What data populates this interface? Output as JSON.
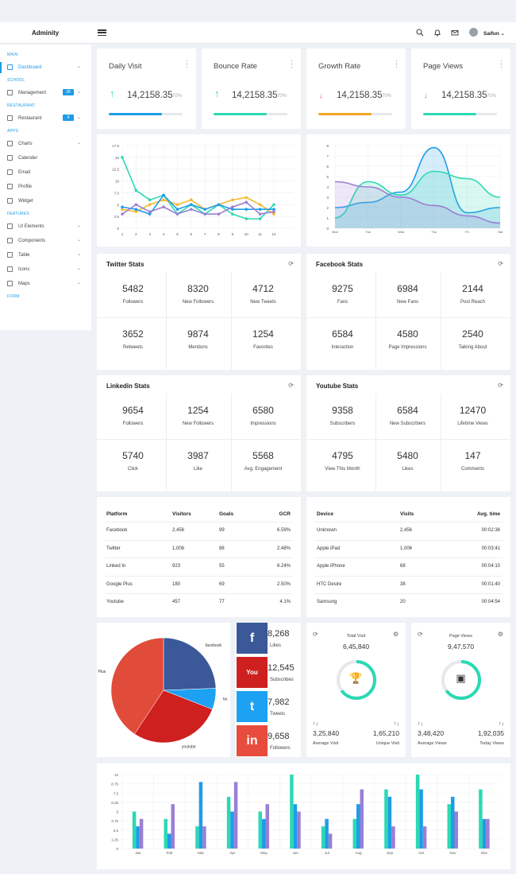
{
  "app": {
    "brand": "Adminity",
    "user": "Saifun"
  },
  "topbar": {
    "icons": [
      "search-icon",
      "bell-icon",
      "mail-icon",
      "avatar"
    ]
  },
  "sidebar": {
    "sections": [
      {
        "title": "MAIN",
        "items": [
          {
            "label": "Dashboard",
            "icon": "home-icon",
            "active": true,
            "chevron": true
          }
        ]
      },
      {
        "title": "SCHOOL",
        "items": [
          {
            "label": "Management",
            "icon": "edit-icon",
            "badge": "28",
            "chevron": true
          }
        ]
      },
      {
        "title": "RESTAURANT",
        "items": [
          {
            "label": "Restaurant",
            "icon": "cup-icon",
            "badge": "9",
            "chevron": true
          }
        ]
      },
      {
        "title": "APPS",
        "items": [
          {
            "label": "Charts",
            "icon": "bar-chart-icon",
            "chevron": true
          },
          {
            "label": "Calender",
            "icon": "calendar-icon"
          },
          {
            "label": "Email",
            "icon": "mail-icon"
          },
          {
            "label": "Profile",
            "icon": "user-icon"
          },
          {
            "label": "Widget",
            "icon": "grid-icon"
          }
        ]
      },
      {
        "title": "FEATURES",
        "items": [
          {
            "label": "UI Elements",
            "icon": "layers-icon",
            "chevron": true
          },
          {
            "label": "Components",
            "icon": "box-icon",
            "chevron": true
          },
          {
            "label": "Table",
            "icon": "table-icon",
            "chevron": true
          },
          {
            "label": "Icons",
            "icon": "heart-icon",
            "chevron": true
          },
          {
            "label": "Maps",
            "icon": "map-icon",
            "chevron": true
          }
        ]
      },
      {
        "title": "FORM",
        "items": []
      }
    ]
  },
  "kpis": [
    {
      "title": "Daily Visit",
      "value": "14,2158.35",
      "pct": "70%",
      "dir": "up",
      "progress": 0.72,
      "color": "#1e9ce8"
    },
    {
      "title": "Bounce Rate",
      "value": "14,2158.35",
      "pct": "70%",
      "dir": "up",
      "progress": 0.72,
      "color": "#2bd9b4"
    },
    {
      "title": "Growth Rate",
      "value": "14,2158.35",
      "pct": "70%",
      "dir": "down",
      "progress": 0.72,
      "color": "#f5a623"
    },
    {
      "title": "Page Views",
      "value": "14,2158.35",
      "pct": "70%",
      "dir": "down",
      "progress": 0.72,
      "color": "#2bd9b4"
    }
  ],
  "stats": [
    {
      "title": "Twitter Stats",
      "cells": [
        {
          "n": "5482",
          "l": "Followers"
        },
        {
          "n": "8320",
          "l": "New Followers"
        },
        {
          "n": "4712",
          "l": "New Tweets"
        },
        {
          "n": "3652",
          "l": "Retweets"
        },
        {
          "n": "9874",
          "l": "Mentions"
        },
        {
          "n": "1254",
          "l": "Favorites"
        }
      ]
    },
    {
      "title": "Facebook Stats",
      "cells": [
        {
          "n": "9275",
          "l": "Fans"
        },
        {
          "n": "6984",
          "l": "New Fans"
        },
        {
          "n": "2144",
          "l": "Post Reach"
        },
        {
          "n": "6584",
          "l": "Interaction"
        },
        {
          "n": "4580",
          "l": "Page Impressions"
        },
        {
          "n": "2540",
          "l": "Talking About"
        }
      ]
    },
    {
      "title": "Linkedin Stats",
      "cells": [
        {
          "n": "9654",
          "l": "Followers"
        },
        {
          "n": "1254",
          "l": "New Followers"
        },
        {
          "n": "6580",
          "l": "Impressions"
        },
        {
          "n": "5740",
          "l": "Click"
        },
        {
          "n": "3987",
          "l": "Like"
        },
        {
          "n": "5568",
          "l": "Avg. Engagement"
        }
      ]
    },
    {
      "title": "Youtube Stats",
      "cells": [
        {
          "n": "9358",
          "l": "Subscribers"
        },
        {
          "n": "6584",
          "l": "New Subscribers"
        },
        {
          "n": "12470",
          "l": "Lifetime Views"
        },
        {
          "n": "4795",
          "l": "View This Month"
        },
        {
          "n": "5480",
          "l": "Likes"
        },
        {
          "n": "147",
          "l": "Comments"
        }
      ]
    }
  ],
  "platform_table": {
    "headers": [
      "Platform",
      "Visitors",
      "Goals",
      "GCR"
    ],
    "rows": [
      [
        "Facebook",
        "2,456",
        "99",
        "6.59%"
      ],
      [
        "Twitter",
        "1,006",
        "88",
        "2.48%"
      ],
      [
        "Linked In",
        "923",
        "55",
        "6.24%"
      ],
      [
        "Google Plus",
        "180",
        "69",
        "2.50%"
      ],
      [
        "Youtube",
        "457",
        "77",
        "4.1%"
      ]
    ]
  },
  "device_table": {
    "headers": [
      "Device",
      "Visits",
      "Avg. time"
    ],
    "rows": [
      [
        "Unknown",
        "2,456",
        "00:02:36"
      ],
      [
        "Apple iPad",
        "1,006",
        "00:03:41"
      ],
      [
        "Apple iPhone",
        "68",
        "00:04:10"
      ],
      [
        "HTC Desire",
        "38",
        "00:01:40"
      ],
      [
        "Samsung",
        "20",
        "00:04:54"
      ]
    ]
  },
  "social": [
    {
      "value": "8,268",
      "label": "Likes",
      "icon": "facebook-icon",
      "glyph": "f",
      "color": "#3b5998"
    },
    {
      "value": "12,545",
      "label": "Subscribes",
      "icon": "youtube-icon",
      "glyph": "You",
      "color": "#cd201f"
    },
    {
      "value": "7,982",
      "label": "Tweets",
      "icon": "twitter-icon",
      "glyph": "t",
      "color": "#1da1f2"
    },
    {
      "value": "9,658",
      "label": "Followers",
      "icon": "linkedin-icon",
      "glyph": "in",
      "color": "#e74c3c"
    }
  ],
  "rings": [
    {
      "title": "Total Visit",
      "value": "6,45,840",
      "icon": "trophy-icon",
      "glyph": "🏆",
      "left_value": "3,25,840",
      "left_label": "Average Visit",
      "right_value": "1,65,210",
      "right_label": "Unique Visit",
      "progress": 0.65
    },
    {
      "title": "Page Views",
      "value": "9,47,570",
      "icon": "wallet-icon",
      "glyph": "▣",
      "left_value": "3,48,420",
      "left_label": "Average Views",
      "right_value": "1,92,035",
      "right_label": "Today Views",
      "progress": 0.65
    }
  ],
  "chart_data": [
    {
      "type": "line",
      "x": [
        1,
        2,
        3,
        4,
        5,
        6,
        7,
        8,
        9,
        10,
        11,
        12
      ],
      "ylim": [
        0,
        17.5
      ],
      "yticks": [
        "0",
        "2.5",
        "5",
        "7.5",
        "10",
        "12.5",
        "15",
        "17.5"
      ],
      "series": [
        {
          "color": "#2bd9b4",
          "values": [
            15,
            8,
            6,
            7,
            3,
            5,
            3,
            5,
            3,
            2,
            2,
            5
          ]
        },
        {
          "color": "#f5b82e",
          "values": [
            4,
            3.5,
            5,
            6,
            5,
            6,
            4,
            5,
            6,
            6.5,
            5,
            3
          ]
        },
        {
          "color": "#1e9ce8",
          "values": [
            4.5,
            4,
            3,
            7,
            4,
            5,
            4,
            5,
            4,
            4,
            4,
            4
          ]
        },
        {
          "color": "#9b7fd4",
          "values": [
            3,
            5,
            3.5,
            4.5,
            3,
            4,
            3,
            3,
            4.5,
            5.5,
            3,
            3.5
          ]
        }
      ]
    },
    {
      "type": "area",
      "categories": [
        "Mon",
        "Tue",
        "Wed",
        "Thu",
        "Fri",
        "Sat"
      ],
      "ylim": [
        0,
        8
      ],
      "yticks": [
        "0",
        "1",
        "2",
        "3",
        "4",
        "5",
        "6",
        "7",
        "8"
      ],
      "series": [
        {
          "color": "#1e9ce8",
          "values": [
            2,
            2.5,
            3.5,
            7.8,
            1.5,
            2
          ]
        },
        {
          "color": "#2bd9b4",
          "values": [
            1,
            4.5,
            3.2,
            5.5,
            4.8,
            3
          ]
        },
        {
          "color": "#9b7fd4",
          "values": [
            4.5,
            4,
            3,
            2.2,
            1.2,
            0.5
          ]
        }
      ]
    },
    {
      "type": "pie",
      "labels": [
        "facebook",
        "tw.",
        "youtube",
        "Plus"
      ],
      "values": [
        30,
        8,
        35,
        50
      ],
      "colors": [
        "#3b5998",
        "#1da1f2",
        "#cd201f",
        "#e04b3a"
      ]
    },
    {
      "type": "bar",
      "categories": [
        "Jan",
        "Feb",
        "Mar",
        "Apr",
        "May",
        "Jun",
        "Jul",
        "Aug",
        "Sep",
        "Oct",
        "Nov",
        "Dec"
      ],
      "ylim": [
        0,
        10
      ],
      "yticks": [
        "0",
        "1.25",
        "2.5",
        "3.75",
        "5",
        "6.25",
        "7.5",
        "8.75",
        "10"
      ],
      "series": [
        {
          "color": "#2bd9b4",
          "values": [
            5,
            4,
            3,
            7,
            5,
            10,
            3,
            4,
            8,
            10,
            6,
            8
          ]
        },
        {
          "color": "#1e9ce8",
          "values": [
            3,
            2,
            9,
            5,
            4,
            6,
            4,
            6,
            7,
            8,
            7,
            4
          ]
        },
        {
          "color": "#9b7fd4",
          "values": [
            4,
            6,
            3,
            9,
            6,
            5,
            2,
            8,
            3,
            3,
            5,
            4
          ]
        }
      ]
    }
  ]
}
